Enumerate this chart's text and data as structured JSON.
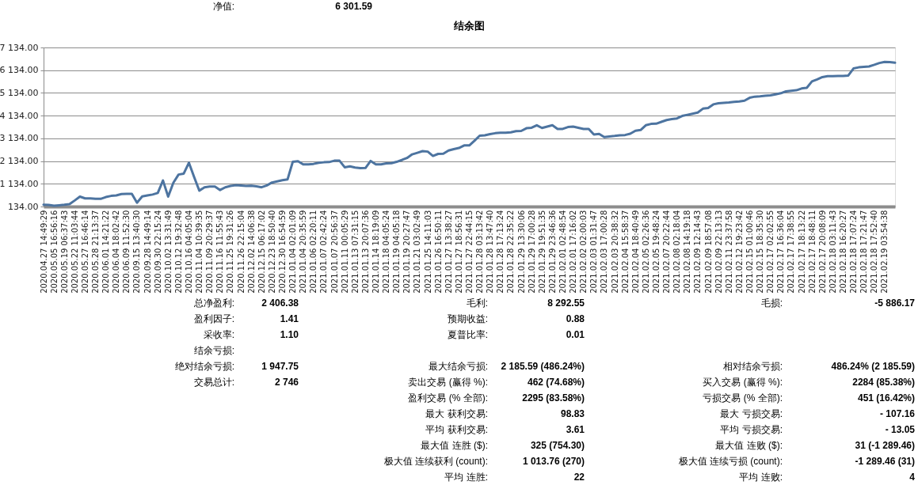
{
  "chart_data": {
    "type": "line",
    "title": "结余图",
    "categories": [
      "2020.04.27 14:49:29",
      null,
      "2020.05.05 16:56:16",
      null,
      "2020.05.19 06:37:43",
      null,
      "2020.05.22 11:03:44",
      null,
      "2020.05.27 16:46:14",
      null,
      "2020.05.28 21:13:37",
      null,
      "2020.06.01 14:21:22",
      null,
      "2020.06.04 18:02:42",
      null,
      "2020.06.09 11:52:30",
      null,
      "2020.09.15 13:40:30",
      null,
      "2020.09.28 14:49:14",
      null,
      "2020.09.30 22:15:24",
      null,
      "2020.10.02 13:31:49",
      null,
      "2020.10.12 19:32:48",
      null,
      "2020.10.16 04:05:04",
      null,
      "2020.11.04 10:39:35",
      null,
      "2020.11.09 20:29:37",
      null,
      "2020.11.16 11:55:43",
      null,
      "2020.11.25 19:31:26",
      null,
      "2020.11.26 22:15:04",
      null,
      "2020.12.02 14:06:38",
      null,
      "2020.12.15 06:17:02",
      null,
      "2020.12.23 18:50:40",
      null,
      "2020.12.30 16:54:59",
      null,
      "2021.01.04 02:01:09",
      null,
      "2021.01.04 20:35:59",
      null,
      "2021.01.06 02:20:11",
      null,
      "2021.01.07 02:42:24",
      null,
      "2021.01.07 20:56:37",
      null,
      "2021.01.11 00:05:29",
      null,
      "2021.01.13 07:31:15",
      null,
      "2021.01.13 20:07:36",
      null,
      "2021.01.14 18:19:09",
      null,
      "2021.01.18 04:05:24",
      null,
      "2021.01.19 04:05:18",
      null,
      "2021.01.19 20:27:47",
      null,
      "2021.01.21 03:02:49",
      null,
      "2021.01.25 14:11:03",
      null,
      "2021.01.26 16:50:11",
      null,
      "2021.01.27 13:38:27",
      null,
      "2021.01.27 18:56:31",
      null,
      "2021.01.27 22:44:15",
      null,
      "2021.01.28 03:13:42",
      null,
      "2021.01.28 13:47:40",
      null,
      "2021.01.28 17:13:24",
      null,
      "2021.01.28 22:35:22",
      null,
      "2021.01.29 13:30:06",
      null,
      "2021.01.29 17:00:28",
      null,
      "2021.01.29 19:51:35",
      null,
      "2021.01.29 23:46:36",
      null,
      "2021.02.01 02:48:54",
      null,
      "2021.02.01 17:16:02",
      null,
      "2021.02.02 02:00:03",
      null,
      "2021.02.03 01:31:47",
      null,
      "2021.02.03 17:00:28",
      null,
      "2021.02.03 20:38:32",
      null,
      "2021.02.04 15:58:37",
      null,
      "2021.02.04 18:40:49",
      null,
      "2021.02.05 02:26:36",
      null,
      "2021.02.05 19:48:24",
      null,
      "2021.02.07 20:22:44",
      null,
      "2021.02.08 02:18:04",
      null,
      "2021.02.08 14:19:18",
      null,
      "2021.02.09 12:14:43",
      null,
      "2021.02.09 18:57:08",
      null,
      "2021.02.09 22:13:13",
      null,
      "2021.02.11 23:37:58",
      null,
      "2021.02.12 19:23:42",
      null,
      "2021.02.15 01:00:46",
      null,
      "2021.02.15 18:35:30",
      null,
      "2021.02.17 02:02:55",
      null,
      "2021.02.17 16:36:04",
      null,
      "2021.02.17 17:38:55",
      null,
      "2021.02.17 18:13:22",
      null,
      "2021.02.17 18:48:11",
      null,
      "2021.02.17 20:08:09",
      null,
      "2021.02.18 03:11:43",
      null,
      "2021.02.18 16:20:27",
      null,
      "2021.02.18 17:07:24",
      null,
      "2021.02.18 17:21:47",
      null,
      "2021.02.18 17:52:40",
      null,
      "2021.02.19 03:54:38",
      null,
      null
    ],
    "series": [
      {
        "color": "#4d74a0",
        "values": [
          210,
          200,
          170,
          190,
          210,
          240,
          400,
          570,
          490,
          490,
          470,
          470,
          550,
          600,
          620,
          680,
          690,
          690,
          300,
          580,
          620,
          660,
          730,
          1280,
          570,
          1180,
          1540,
          1580,
          2060,
          1430,
          830,
          980,
          1010,
          1010,
          860,
          980,
          1040,
          1070,
          1060,
          1040,
          1050,
          1020,
          980,
          1060,
          1190,
          1240,
          1290,
          1330,
          2100,
          2130,
          1990,
          1990,
          2010,
          2060,
          2080,
          2090,
          2150,
          2150,
          1860,
          1900,
          1850,
          1820,
          1830,
          2140,
          1990,
          1990,
          2030,
          2040,
          2100,
          2180,
          2270,
          2430,
          2500,
          2570,
          2550,
          2360,
          2450,
          2460,
          2600,
          2660,
          2710,
          2820,
          2820,
          3030,
          3250,
          3270,
          3320,
          3360,
          3380,
          3380,
          3400,
          3450,
          3460,
          3580,
          3600,
          3710,
          3590,
          3650,
          3710,
          3550,
          3550,
          3630,
          3650,
          3600,
          3550,
          3550,
          3300,
          3330,
          3190,
          3220,
          3240,
          3270,
          3280,
          3340,
          3470,
          3500,
          3710,
          3770,
          3780,
          3860,
          3940,
          3980,
          4010,
          4120,
          4170,
          4220,
          4270,
          4440,
          4470,
          4630,
          4680,
          4700,
          4710,
          4740,
          4760,
          4790,
          4920,
          4970,
          4980,
          5010,
          5030,
          5070,
          5120,
          5200,
          5230,
          5250,
          5330,
          5360,
          5640,
          5730,
          5830,
          5870,
          5870,
          5880,
          5880,
          5900,
          6210,
          6260,
          6280,
          6300,
          6370,
          6450,
          6500,
          6490,
          6460
        ]
      }
    ],
    "ylim": [
      134,
      7134
    ],
    "yticks": [
      {
        "value": 134,
        "label": "134.00"
      },
      {
        "value": 1134,
        "label": "1 134.00"
      },
      {
        "value": 2134,
        "label": "2 134.00"
      },
      {
        "value": 3134,
        "label": "3 134.00"
      },
      {
        "value": 4134,
        "label": "4 134.00"
      },
      {
        "value": 5134,
        "label": "5 134.00"
      },
      {
        "value": 6134,
        "label": "6 134.00"
      },
      {
        "value": 7134,
        "label": "7 134.00"
      }
    ],
    "grid": "y",
    "annotations": [
      "净值:",
      "6 301.59",
      "总净盈利:",
      "2 406.38",
      "毛利:",
      "8 292.55",
      "毛损:",
      "-5 886.17",
      "盈利因子:",
      "1.41",
      "预期收益:",
      "0.88",
      "采收率:",
      "1.10",
      "夏普比率:",
      "0.01",
      "结余亏损:",
      "绝对结余亏损:",
      "1 947.75",
      "最大结余亏损:",
      "2 185.59 (486.24%)",
      "相对结余亏损:",
      "486.24% (2 185.59)",
      "交易总计:",
      "2 746",
      "卖出交易 (赢得 %):",
      "462 (74.68%)",
      "买入交易 (赢得 %):",
      "2284 (85.38%)",
      "盈利交易 (% 全部):",
      "2295 (83.58%)",
      "亏损交易 (% 全部):",
      "451 (16.42%)",
      "最大 获利交易:",
      "98.83",
      "最大 亏损交易:",
      "- 107.16",
      "平均 获利交易:",
      "3.61",
      "平均 亏损交易:",
      "- 13.05",
      "最大值 连胜 ($):",
      "325 (754.30)",
      "最大值 连败 ($):",
      "31 (-1 289.46)",
      "极大值 连续获利 (count):",
      "1 013.76 (270)",
      "极大值 连续亏损 (count):",
      "-1 289.46 (31)",
      "平均 连胜:",
      "22",
      "平均 连败:",
      "4"
    ]
  }
}
